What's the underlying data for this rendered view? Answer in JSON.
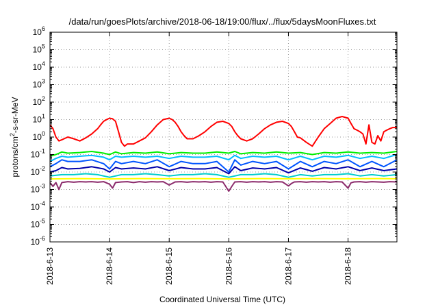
{
  "chart_data": {
    "type": "line",
    "title": "/data/run/goesPlots/archive/2018-06-18/19:00/flux/../flux/5daysMoonFluxes.txt",
    "xlabel": "Coordinated Universal Time (UTC)",
    "ylabel": {
      "prefix": "protons/cm",
      "sup": "2",
      "suffix": "-s-sr-MeV"
    },
    "x_range_days": [
      0,
      5.82
    ],
    "x_ticks": [
      {
        "label": "2018-6-13",
        "day": 0
      },
      {
        "label": "2018-6-14",
        "day": 1
      },
      {
        "label": "2018-6-15",
        "day": 2
      },
      {
        "label": "2018-6-16",
        "day": 3
      },
      {
        "label": "2018-6-17",
        "day": 4
      },
      {
        "label": "2018-6-18",
        "day": 5
      }
    ],
    "y_scale": "log",
    "ylim": [
      1e-06,
      1000000.0
    ],
    "y_ticks": [
      {
        "base": "10",
        "exp": "-6",
        "value": 1e-06
      },
      {
        "base": "10",
        "exp": "-5",
        "value": 1e-05
      },
      {
        "base": "10",
        "exp": "-4",
        "value": 0.0001
      },
      {
        "base": "10",
        "exp": "-3",
        "value": 0.001
      },
      {
        "base": "10",
        "exp": "-2",
        "value": 0.01
      },
      {
        "base": "10",
        "exp": "-1",
        "value": 0.1
      },
      {
        "base": "10",
        "exp": "0",
        "value": 1
      },
      {
        "base": "10",
        "exp": "1",
        "value": 10
      },
      {
        "base": "10",
        "exp": "2",
        "value": 100
      },
      {
        "base": "10",
        "exp": "3",
        "value": 1000
      },
      {
        "base": "10",
        "exp": "4",
        "value": 10000
      },
      {
        "base": "10",
        "exp": "5",
        "value": 100000
      },
      {
        "base": "10",
        "exp": "6",
        "value": 1000000
      }
    ],
    "grid": true,
    "series": [
      {
        "color": "#ff0000",
        "x": [
          0.0,
          0.05,
          0.1,
          0.15,
          0.2,
          0.3,
          0.4,
          0.5,
          0.6,
          0.7,
          0.8,
          0.85,
          0.9,
          0.95,
          1.0,
          1.05,
          1.1,
          1.15,
          1.2,
          1.25,
          1.3,
          1.4,
          1.5,
          1.6,
          1.7,
          1.8,
          1.9,
          2.0,
          2.05,
          2.1,
          2.15,
          2.2,
          2.25,
          2.3,
          2.4,
          2.5,
          2.6,
          2.7,
          2.8,
          2.9,
          3.0,
          3.05,
          3.1,
          3.15,
          3.2,
          3.3,
          3.4,
          3.5,
          3.6,
          3.7,
          3.8,
          3.9,
          4.0,
          4.05,
          4.1,
          4.15,
          4.2,
          4.3,
          4.4,
          4.5,
          4.6,
          4.7,
          4.8,
          4.9,
          5.0,
          5.05,
          5.1,
          5.15,
          5.2,
          5.25,
          5.3,
          5.35,
          5.4,
          5.45,
          5.5,
          5.55,
          5.6,
          5.65,
          5.7,
          5.75,
          5.82
        ],
        "values": [
          5,
          3,
          1,
          0.6,
          0.7,
          1.0,
          0.8,
          0.6,
          0.9,
          1.5,
          3,
          5,
          8,
          10,
          12,
          11,
          8,
          2,
          0.5,
          0.3,
          0.4,
          0.4,
          0.6,
          0.9,
          2,
          5,
          10,
          12,
          10,
          7,
          4,
          2,
          1.2,
          0.8,
          0.8,
          1.2,
          2,
          4,
          7,
          8,
          6,
          4,
          2,
          1.2,
          0.8,
          0.6,
          0.8,
          1.5,
          3,
          5,
          7,
          8,
          6,
          4,
          2,
          1,
          0.9,
          0.5,
          0.3,
          1,
          3,
          6,
          12,
          15,
          12,
          6,
          3,
          2.5,
          2,
          1.5,
          0.4,
          5,
          0.5,
          0.4,
          1.2,
          0.6,
          2,
          2.5,
          3,
          3.5,
          3.5
        ]
      },
      {
        "color": "#00ee00",
        "x": [
          0.0,
          0.1,
          0.2,
          0.3,
          0.5,
          0.7,
          0.9,
          1.0,
          1.1,
          1.2,
          1.4,
          1.6,
          1.8,
          2.0,
          2.2,
          2.4,
          2.6,
          2.8,
          3.0,
          3.1,
          3.2,
          3.4,
          3.6,
          3.8,
          4.0,
          4.2,
          4.4,
          4.6,
          4.8,
          5.0,
          5.2,
          5.4,
          5.6,
          5.82
        ],
        "values": [
          0.08,
          0.1,
          0.14,
          0.12,
          0.13,
          0.15,
          0.12,
          0.1,
          0.14,
          0.11,
          0.13,
          0.12,
          0.14,
          0.11,
          0.13,
          0.12,
          0.12,
          0.14,
          0.12,
          0.15,
          0.11,
          0.13,
          0.12,
          0.14,
          0.12,
          0.13,
          0.1,
          0.13,
          0.12,
          0.14,
          0.12,
          0.13,
          0.12,
          0.15
        ]
      },
      {
        "color": "#00bbff",
        "x": [
          0.0,
          0.1,
          0.2,
          0.3,
          0.5,
          0.7,
          0.9,
          1.0,
          1.1,
          1.2,
          1.4,
          1.6,
          1.8,
          2.0,
          2.2,
          2.4,
          2.6,
          2.8,
          3.0,
          3.1,
          3.2,
          3.4,
          3.6,
          3.8,
          4.0,
          4.2,
          4.4,
          4.6,
          4.8,
          5.0,
          5.2,
          5.4,
          5.6,
          5.82
        ],
        "values": [
          0.04,
          0.06,
          0.08,
          0.07,
          0.08,
          0.09,
          0.07,
          0.05,
          0.08,
          0.07,
          0.08,
          0.07,
          0.08,
          0.06,
          0.08,
          0.07,
          0.07,
          0.08,
          0.05,
          0.09,
          0.06,
          0.08,
          0.07,
          0.08,
          0.05,
          0.08,
          0.05,
          0.08,
          0.07,
          0.09,
          0.06,
          0.08,
          0.06,
          0.1
        ]
      },
      {
        "color": "#0055ff",
        "x": [
          0.0,
          0.1,
          0.2,
          0.3,
          0.5,
          0.7,
          0.9,
          1.0,
          1.1,
          1.2,
          1.4,
          1.6,
          1.8,
          2.0,
          2.2,
          2.4,
          2.6,
          2.8,
          3.0,
          3.1,
          3.2,
          3.4,
          3.6,
          3.8,
          4.0,
          4.2,
          4.4,
          4.6,
          4.8,
          5.0,
          5.2,
          5.4,
          5.6,
          5.82
        ],
        "values": [
          0.02,
          0.03,
          0.05,
          0.04,
          0.04,
          0.05,
          0.03,
          0.015,
          0.04,
          0.03,
          0.04,
          0.03,
          0.05,
          0.02,
          0.04,
          0.03,
          0.03,
          0.04,
          0.01,
          0.05,
          0.025,
          0.04,
          0.03,
          0.04,
          0.015,
          0.04,
          0.02,
          0.04,
          0.03,
          0.05,
          0.02,
          0.04,
          0.02,
          0.05
        ]
      },
      {
        "color": "#0000aa",
        "x": [
          0.0,
          0.1,
          0.2,
          0.3,
          0.5,
          0.7,
          0.9,
          1.0,
          1.1,
          1.2,
          1.4,
          1.6,
          1.8,
          2.0,
          2.2,
          2.4,
          2.6,
          2.8,
          3.0,
          3.1,
          3.2,
          3.4,
          3.6,
          3.8,
          4.0,
          4.2,
          4.4,
          4.6,
          4.8,
          5.0,
          5.2,
          5.4,
          5.6,
          5.82
        ],
        "values": [
          0.01,
          0.012,
          0.018,
          0.015,
          0.016,
          0.02,
          0.015,
          0.01,
          0.018,
          0.015,
          0.017,
          0.015,
          0.02,
          0.012,
          0.018,
          0.015,
          0.015,
          0.018,
          0.008,
          0.02,
          0.012,
          0.017,
          0.015,
          0.018,
          0.009,
          0.017,
          0.011,
          0.018,
          0.015,
          0.02,
          0.012,
          0.017,
          0.012,
          0.015
        ]
      },
      {
        "color": "#00cccc",
        "x": [
          0.0,
          0.2,
          0.4,
          0.6,
          0.8,
          1.0,
          1.2,
          1.4,
          1.6,
          1.8,
          2.0,
          2.2,
          2.4,
          2.6,
          2.8,
          3.0,
          3.2,
          3.4,
          3.6,
          3.8,
          4.0,
          4.2,
          4.4,
          4.6,
          4.8,
          5.0,
          5.2,
          5.4,
          5.6,
          5.82
        ],
        "values": [
          0.006,
          0.007,
          0.007,
          0.008,
          0.007,
          0.005,
          0.007,
          0.007,
          0.008,
          0.007,
          0.006,
          0.007,
          0.007,
          0.008,
          0.007,
          0.005,
          0.007,
          0.007,
          0.008,
          0.007,
          0.005,
          0.007,
          0.006,
          0.007,
          0.007,
          0.008,
          0.006,
          0.007,
          0.006,
          0.007
        ]
      },
      {
        "color": "#ffff00",
        "x": [
          0.0,
          0.5,
          1.0,
          1.5,
          2.0,
          2.5,
          3.0,
          3.5,
          4.0,
          4.5,
          5.0,
          5.5,
          5.82
        ],
        "values": [
          0.004,
          0.0042,
          0.004,
          0.0042,
          0.0041,
          0.0042,
          0.004,
          0.0042,
          0.0041,
          0.0042,
          0.0041,
          0.0042,
          0.0041
        ]
      },
      {
        "color": "#8b2a6b",
        "x": [
          0.0,
          0.05,
          0.1,
          0.15,
          0.2,
          0.3,
          0.4,
          0.5,
          0.6,
          0.7,
          0.8,
          0.9,
          1.0,
          1.05,
          1.1,
          1.2,
          1.3,
          1.4,
          1.5,
          1.6,
          1.7,
          1.8,
          1.9,
          2.0,
          2.1,
          2.2,
          2.3,
          2.4,
          2.5,
          2.6,
          2.7,
          2.8,
          2.9,
          3.0,
          3.05,
          3.1,
          3.2,
          3.3,
          3.4,
          3.5,
          3.6,
          3.7,
          3.8,
          3.9,
          4.0,
          4.05,
          4.1,
          4.2,
          4.3,
          4.4,
          4.5,
          4.6,
          4.7,
          4.8,
          4.9,
          5.0,
          5.05,
          5.1,
          5.2,
          5.3,
          5.4,
          5.5,
          5.6,
          5.7,
          5.82
        ],
        "values": [
          0.0025,
          0.0015,
          0.0025,
          0.001,
          0.0025,
          0.0028,
          0.0026,
          0.0028,
          0.0027,
          0.0028,
          0.0026,
          0.0028,
          0.002,
          0.0012,
          0.0025,
          0.0027,
          0.0028,
          0.0025,
          0.0028,
          0.0026,
          0.0028,
          0.0027,
          0.0028,
          0.0018,
          0.0027,
          0.0028,
          0.0026,
          0.0028,
          0.0027,
          0.0028,
          0.0026,
          0.0028,
          0.0027,
          0.0008,
          0.0015,
          0.0027,
          0.0028,
          0.0026,
          0.0028,
          0.0027,
          0.0028,
          0.0026,
          0.0028,
          0.0027,
          0.0016,
          0.0022,
          0.0027,
          0.0028,
          0.0026,
          0.0028,
          0.0027,
          0.0028,
          0.0026,
          0.0028,
          0.0027,
          0.0012,
          0.0024,
          0.0027,
          0.0028,
          0.0026,
          0.0028,
          0.0027,
          0.0026,
          0.0028,
          0.0027
        ]
      }
    ]
  }
}
